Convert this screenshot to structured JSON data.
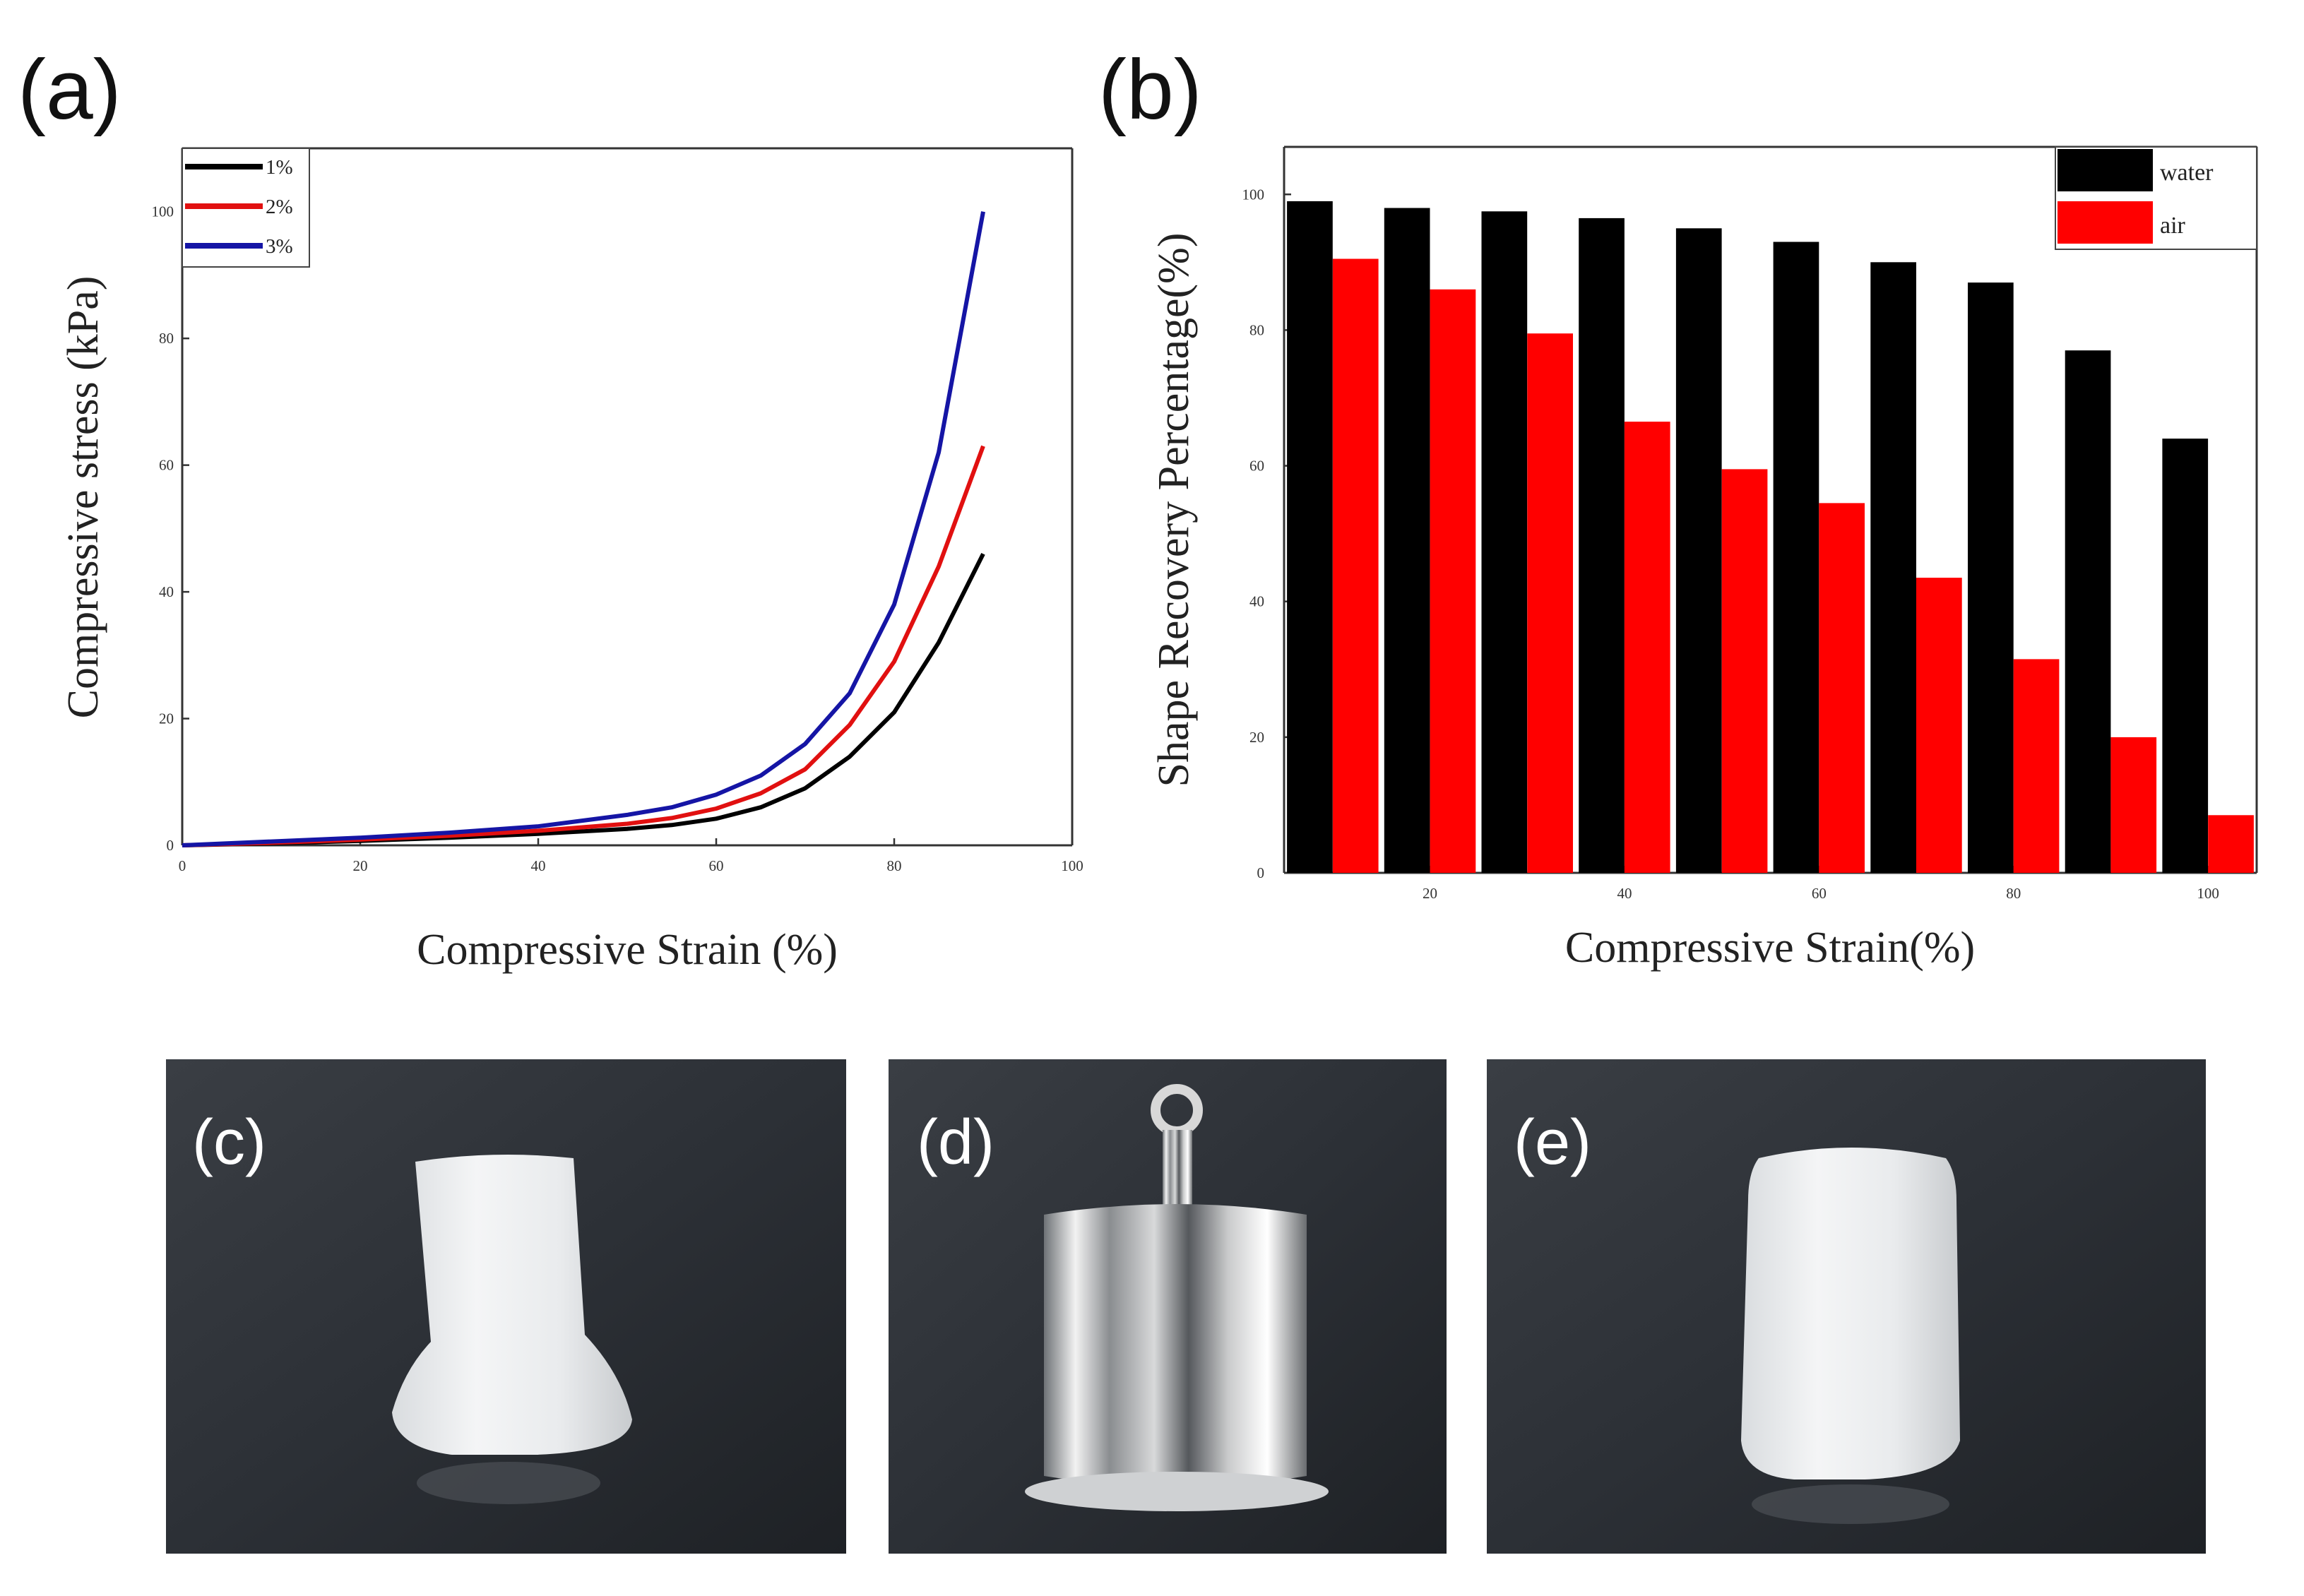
{
  "panels": {
    "a": "(a)",
    "b": "(b)",
    "c": "(c)",
    "d": "(d)",
    "e": "(e)"
  },
  "colors": {
    "black": "#000000",
    "red": "#e11010",
    "blue": "#1515a5",
    "water": "#000000",
    "air": "#ff0000"
  },
  "chart_data": [
    {
      "type": "line",
      "panel": "a",
      "title": "",
      "xlabel": "Compressive Strain (%)",
      "ylabel": "Compressive stress (kPa)",
      "xlim": [
        0,
        100
      ],
      "ylim": [
        0,
        110
      ],
      "xticks": [
        "0",
        "20",
        "40",
        "60",
        "80",
        "100"
      ],
      "yticks": [
        "0",
        "20",
        "40",
        "60",
        "80",
        "100"
      ],
      "legend_position": "top-left",
      "series": [
        {
          "name": "1%",
          "color": "#000000",
          "x": [
            0,
            10,
            20,
            30,
            40,
            50,
            55,
            60,
            65,
            70,
            75,
            80,
            85,
            90
          ],
          "y": [
            0,
            0.3,
            0.7,
            1.2,
            1.8,
            2.6,
            3.2,
            4.2,
            6.0,
            9.0,
            14.0,
            21.0,
            32.0,
            46.0
          ]
        },
        {
          "name": "2%",
          "color": "#e11010",
          "x": [
            0,
            10,
            20,
            30,
            40,
            50,
            55,
            60,
            65,
            70,
            75,
            80,
            85,
            90
          ],
          "y": [
            0,
            0.4,
            0.9,
            1.5,
            2.3,
            3.4,
            4.3,
            5.8,
            8.2,
            12.0,
            19.0,
            29.0,
            44.0,
            63.0
          ]
        },
        {
          "name": "3%",
          "color": "#1515a5",
          "x": [
            0,
            10,
            20,
            30,
            40,
            50,
            55,
            60,
            65,
            70,
            75,
            80,
            85,
            90
          ],
          "y": [
            0,
            0.6,
            1.2,
            2.0,
            3.0,
            4.8,
            6.0,
            8.0,
            11.0,
            16.0,
            24.0,
            38.0,
            62.0,
            100.0
          ]
        }
      ]
    },
    {
      "type": "bar",
      "panel": "b",
      "title": "",
      "xlabel": "Compressive Strain(%)",
      "ylabel": "Shape Recovery Percentage(%)",
      "categories": [
        10,
        20,
        30,
        40,
        50,
        60,
        70,
        80,
        90,
        100
      ],
      "xticks": [
        "20",
        "40",
        "60",
        "80",
        "100"
      ],
      "yticks": [
        "0",
        "20",
        "40",
        "60",
        "80",
        "100"
      ],
      "ylim": [
        0,
        107
      ],
      "legend_position": "top-right",
      "series": [
        {
          "name": "water",
          "color": "#000000",
          "values": [
            99,
            98,
            97.5,
            96.5,
            95,
            93,
            90,
            87,
            77,
            64
          ]
        },
        {
          "name": "air",
          "color": "#ff0000",
          "values": [
            90.5,
            86,
            79.5,
            66.5,
            59.5,
            54.5,
            43.5,
            31.5,
            20,
            8.5
          ]
        }
      ]
    }
  ]
}
